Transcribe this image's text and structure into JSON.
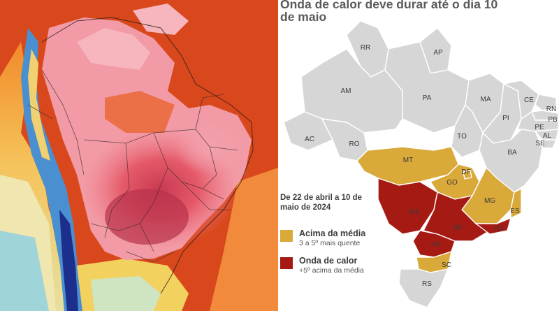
{
  "title": "Onda de calor deve durar até o dia 10 de maio",
  "period": "De 22 de abril a 10 de maio de 2024",
  "colors": {
    "base_state": "#d6d6d6",
    "acima_media": "#d9a93a",
    "onda_calor": "#a51b14",
    "border": "#ffffff"
  },
  "legend": [
    {
      "key": "acima_media",
      "title": "Acima da média",
      "subtitle": "3 a 5º mais quente"
    },
    {
      "key": "onda_calor",
      "title": "Onda de calor",
      "subtitle": "+5º acima da média"
    }
  ],
  "states": {
    "RR": "RR",
    "AP": "AP",
    "AM": "AM",
    "PA": "PA",
    "MA": "MA",
    "CE": "CE",
    "RN": "RN",
    "PB": "PB",
    "PI": "PI",
    "PE": "PE",
    "AL": "AL",
    "SE": "SE",
    "AC": "AC",
    "RO": "RO",
    "TO": "TO",
    "BA": "BA",
    "MT": "MT",
    "DF": "DF",
    "GO": "GO",
    "MG": "MG",
    "ES": "ES",
    "MS": "MS",
    "SP": "SP",
    "RJ": "RJ",
    "PR": "PR",
    "SC": "SC",
    "RS": "RS"
  },
  "state_categories": {
    "heat_wave": [
      "MS",
      "SP",
      "PR",
      "RJ"
    ],
    "above_average": [
      "MT",
      "GO",
      "DF",
      "MG",
      "ES",
      "SC"
    ]
  }
}
